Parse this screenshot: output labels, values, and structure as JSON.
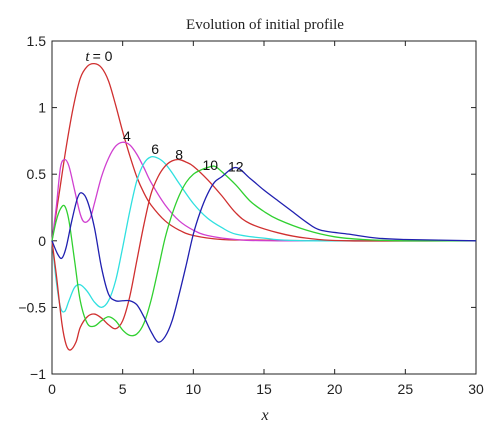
{
  "chart_data": {
    "type": "line",
    "title": "Evolution of initial profile",
    "xlabel": "x",
    "ylabel": "",
    "xlim": [
      0,
      30
    ],
    "ylim": [
      -1,
      1.5
    ],
    "x_ticks": [
      0,
      5,
      10,
      15,
      20,
      25,
      30
    ],
    "x_tick_labels": [
      "0",
      "5",
      "10",
      "15",
      "20",
      "25",
      "30"
    ],
    "y_ticks": [
      -1,
      -0.5,
      0,
      0.5,
      1,
      1.5
    ],
    "y_tick_labels": [
      "−1",
      "−0.5",
      "0",
      "0.5",
      "1",
      "1.5"
    ],
    "grid": false,
    "series": [
      {
        "name": "t = 0",
        "color": "#d03030",
        "points": [
          [
            0,
            0
          ],
          [
            0.5,
            0.35
          ],
          [
            1,
            0.7
          ],
          [
            1.5,
            1.0
          ],
          [
            2,
            1.22
          ],
          [
            2.5,
            1.31
          ],
          [
            3,
            1.33
          ],
          [
            3.5,
            1.3
          ],
          [
            4,
            1.2
          ],
          [
            4.5,
            1.02
          ],
          [
            5,
            0.82
          ],
          [
            5.5,
            0.64
          ],
          [
            6,
            0.48
          ],
          [
            6.5,
            0.36
          ],
          [
            7,
            0.27
          ],
          [
            8,
            0.15
          ],
          [
            9,
            0.08
          ],
          [
            10,
            0.04
          ],
          [
            12,
            0.01
          ],
          [
            15,
            0.005
          ],
          [
            20,
            0
          ],
          [
            30,
            0
          ]
        ]
      },
      {
        "name": "4",
        "color": "#d040d0",
        "points": [
          [
            0,
            0
          ],
          [
            0.3,
            0.25
          ],
          [
            0.6,
            0.55
          ],
          [
            0.9,
            0.61
          ],
          [
            1.2,
            0.56
          ],
          [
            1.6,
            0.38
          ],
          [
            2,
            0.2
          ],
          [
            2.3,
            0.14
          ],
          [
            2.7,
            0.17
          ],
          [
            3,
            0.28
          ],
          [
            3.5,
            0.48
          ],
          [
            4,
            0.62
          ],
          [
            4.5,
            0.71
          ],
          [
            5,
            0.74
          ],
          [
            5.5,
            0.72
          ],
          [
            6,
            0.65
          ],
          [
            6.5,
            0.55
          ],
          [
            7,
            0.44
          ],
          [
            8,
            0.27
          ],
          [
            9,
            0.15
          ],
          [
            10,
            0.08
          ],
          [
            11,
            0.04
          ],
          [
            13,
            0.01
          ],
          [
            16,
            0
          ],
          [
            30,
            0
          ]
        ]
      },
      {
        "name": "6",
        "color": "#30e0e0",
        "points": [
          [
            0,
            0
          ],
          [
            0.3,
            -0.3
          ],
          [
            0.6,
            -0.5
          ],
          [
            0.9,
            -0.53
          ],
          [
            1.2,
            -0.45
          ],
          [
            1.6,
            -0.35
          ],
          [
            2,
            -0.33
          ],
          [
            2.5,
            -0.38
          ],
          [
            3,
            -0.46
          ],
          [
            3.5,
            -0.5
          ],
          [
            4,
            -0.45
          ],
          [
            4.5,
            -0.3
          ],
          [
            5,
            -0.05
          ],
          [
            5.5,
            0.22
          ],
          [
            6,
            0.45
          ],
          [
            6.5,
            0.58
          ],
          [
            7,
            0.63
          ],
          [
            7.5,
            0.62
          ],
          [
            8,
            0.58
          ],
          [
            8.5,
            0.51
          ],
          [
            9,
            0.43
          ],
          [
            10,
            0.28
          ],
          [
            11,
            0.17
          ],
          [
            12,
            0.1
          ],
          [
            13,
            0.05
          ],
          [
            15,
            0.02
          ],
          [
            18,
            0
          ],
          [
            30,
            0
          ]
        ]
      },
      {
        "name": "8",
        "color": "#d03030",
        "points": [
          [
            0,
            0
          ],
          [
            0.3,
            -0.25
          ],
          [
            0.7,
            -0.62
          ],
          [
            1,
            -0.78
          ],
          [
            1.3,
            -0.82
          ],
          [
            1.7,
            -0.76
          ],
          [
            2,
            -0.65
          ],
          [
            2.5,
            -0.57
          ],
          [
            3,
            -0.55
          ],
          [
            3.5,
            -0.58
          ],
          [
            4,
            -0.63
          ],
          [
            4.5,
            -0.66
          ],
          [
            5,
            -0.6
          ],
          [
            5.5,
            -0.42
          ],
          [
            6,
            -0.15
          ],
          [
            6.5,
            0.12
          ],
          [
            7,
            0.35
          ],
          [
            7.5,
            0.48
          ],
          [
            8,
            0.56
          ],
          [
            8.5,
            0.6
          ],
          [
            9,
            0.61
          ],
          [
            9.5,
            0.59
          ],
          [
            10,
            0.56
          ],
          [
            11,
            0.46
          ],
          [
            12,
            0.34
          ],
          [
            13,
            0.21
          ],
          [
            14,
            0.13
          ],
          [
            16,
            0.06
          ],
          [
            18,
            0.02
          ],
          [
            21,
            0
          ],
          [
            30,
            0
          ]
        ]
      },
      {
        "name": "10",
        "color": "#30d030",
        "points": [
          [
            0,
            0
          ],
          [
            0.3,
            0.15
          ],
          [
            0.6,
            0.24
          ],
          [
            0.9,
            0.26
          ],
          [
            1.2,
            0.15
          ],
          [
            1.6,
            -0.15
          ],
          [
            2,
            -0.45
          ],
          [
            2.5,
            -0.62
          ],
          [
            3,
            -0.64
          ],
          [
            3.5,
            -0.6
          ],
          [
            4,
            -0.57
          ],
          [
            4.5,
            -0.6
          ],
          [
            5,
            -0.67
          ],
          [
            5.5,
            -0.71
          ],
          [
            6,
            -0.7
          ],
          [
            6.5,
            -0.62
          ],
          [
            7,
            -0.45
          ],
          [
            7.5,
            -0.22
          ],
          [
            8,
            0.02
          ],
          [
            8.5,
            0.2
          ],
          [
            9,
            0.34
          ],
          [
            9.5,
            0.44
          ],
          [
            10,
            0.5
          ],
          [
            10.5,
            0.53
          ],
          [
            11,
            0.55
          ],
          [
            11.5,
            0.56
          ],
          [
            12,
            0.52
          ],
          [
            13,
            0.42
          ],
          [
            14,
            0.3
          ],
          [
            15,
            0.22
          ],
          [
            16,
            0.16
          ],
          [
            18,
            0.08
          ],
          [
            20,
            0.03
          ],
          [
            22,
            0.01
          ],
          [
            25,
            0
          ],
          [
            30,
            0
          ]
        ]
      },
      {
        "name": "12",
        "color": "#2020b0",
        "points": [
          [
            0,
            0
          ],
          [
            0.4,
            -0.1
          ],
          [
            0.7,
            -0.13
          ],
          [
            1,
            -0.05
          ],
          [
            1.4,
            0.15
          ],
          [
            1.8,
            0.32
          ],
          [
            2.1,
            0.36
          ],
          [
            2.5,
            0.3
          ],
          [
            3,
            0.1
          ],
          [
            3.5,
            -0.2
          ],
          [
            4,
            -0.4
          ],
          [
            4.5,
            -0.45
          ],
          [
            5,
            -0.45
          ],
          [
            5.5,
            -0.45
          ],
          [
            6,
            -0.48
          ],
          [
            6.5,
            -0.57
          ],
          [
            7,
            -0.68
          ],
          [
            7.5,
            -0.76
          ],
          [
            8,
            -0.72
          ],
          [
            8.5,
            -0.6
          ],
          [
            9,
            -0.4
          ],
          [
            9.5,
            -0.18
          ],
          [
            10,
            0.05
          ],
          [
            10.5,
            0.22
          ],
          [
            11,
            0.35
          ],
          [
            11.5,
            0.44
          ],
          [
            12,
            0.48
          ],
          [
            13,
            0.55
          ],
          [
            14,
            0.47
          ],
          [
            15,
            0.38
          ],
          [
            16,
            0.3
          ],
          [
            17,
            0.22
          ],
          [
            18,
            0.14
          ],
          [
            19,
            0.08
          ],
          [
            21,
            0.05
          ],
          [
            23,
            0.02
          ],
          [
            25,
            0.01
          ],
          [
            30,
            0
          ]
        ]
      }
    ],
    "annotations": [
      {
        "text_t": "t",
        "text_rest": "= 0",
        "x": 2.8,
        "y": 1.35
      },
      {
        "text": "4",
        "x": 5.3,
        "y": 0.75
      },
      {
        "text": "6",
        "x": 7.3,
        "y": 0.65
      },
      {
        "text": "8",
        "x": 9.0,
        "y": 0.61
      },
      {
        "text": "10",
        "x": 11.2,
        "y": 0.53
      },
      {
        "text": "12",
        "x": 13.0,
        "y": 0.52
      }
    ]
  }
}
